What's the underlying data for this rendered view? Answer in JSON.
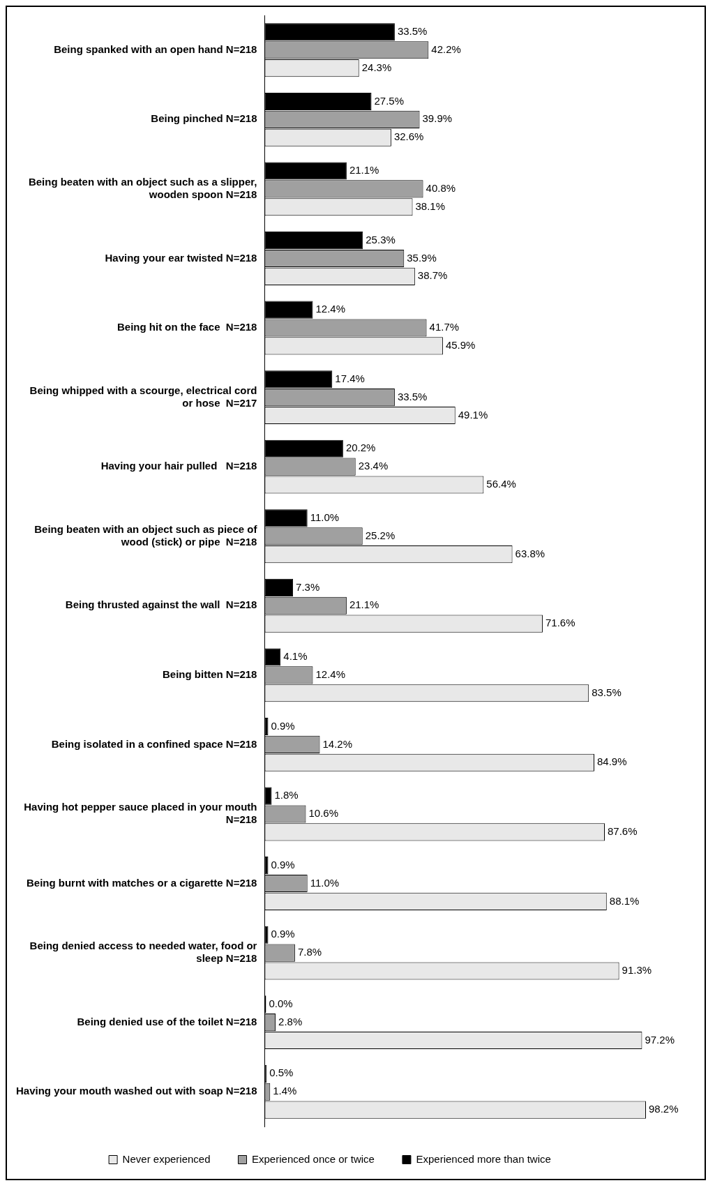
{
  "chart_data": {
    "type": "bar",
    "orientation": "horizontal",
    "categories": [
      "Being spanked with an open hand N=218",
      "Being pinched N=218",
      "Being beaten with an object such as a slipper, wooden spoon N=218",
      "Having your ear twisted N=218",
      "Being hit on the face  N=218",
      "Being whipped with a scourge, electrical cord or hose  N=217",
      "Having your hair pulled   N=218",
      "Being beaten with an object such as piece of wood (stick) or pipe  N=218",
      "Being thrusted against the wall  N=218",
      "Being bitten N=218",
      "Being isolated in a confined space N=218",
      "Having hot pepper sauce placed in your mouth N=218",
      "Being burnt with matches or a cigarette N=218",
      "Being denied access to needed water, food or sleep N=218",
      "Being denied use of the toilet N=218",
      "Having your mouth washed out with soap N=218"
    ],
    "series": [
      {
        "name": "Experienced more than twice",
        "color": "#000000",
        "values": [
          33.5,
          27.5,
          21.1,
          25.3,
          12.4,
          17.4,
          20.2,
          11.0,
          7.3,
          4.1,
          0.9,
          1.8,
          0.9,
          0.9,
          0.0,
          0.5
        ],
        "value_labels": [
          "33.5%",
          "27.5%",
          "21.1%",
          "25.3%",
          "12.4%",
          "17.4%",
          "20.2%",
          "11.0%",
          "7.3%",
          "4.1%",
          "0.9%",
          "1.8%",
          "0.9%",
          "0.9%",
          "0.0%",
          "0.5%"
        ]
      },
      {
        "name": "Experienced once or twice",
        "color": "#a0a0a0",
        "values": [
          42.2,
          39.9,
          40.8,
          35.9,
          41.7,
          33.5,
          23.4,
          25.2,
          21.1,
          12.4,
          14.2,
          10.6,
          11.0,
          7.8,
          2.8,
          1.4
        ],
        "value_labels": [
          "42.2%",
          "39.9%",
          "40.8%",
          "35.9%",
          "41.7%",
          "33.5%",
          "23.4%",
          "25.2%",
          "21.1%",
          "12.4%",
          "14.2%",
          "10.6%",
          "11.0%",
          "7.8%",
          "2.8%",
          "1.4%"
        ]
      },
      {
        "name": "Never experienced",
        "color": "#e8e8e8",
        "values": [
          24.3,
          32.6,
          38.1,
          38.7,
          45.9,
          49.1,
          56.4,
          63.8,
          71.6,
          83.5,
          84.9,
          87.6,
          88.1,
          91.3,
          97.2,
          98.2
        ],
        "value_labels": [
          "24.3%",
          "32.6%",
          "38.1%",
          "38.7%",
          "45.9%",
          "49.1%",
          "56.4%",
          "63.8%",
          "71.6%",
          "83.5%",
          "84.9%",
          "87.6%",
          "88.1%",
          "91.3%",
          "97.2%",
          "98.2%"
        ]
      }
    ],
    "legend": "bottom",
    "grid": false
  }
}
